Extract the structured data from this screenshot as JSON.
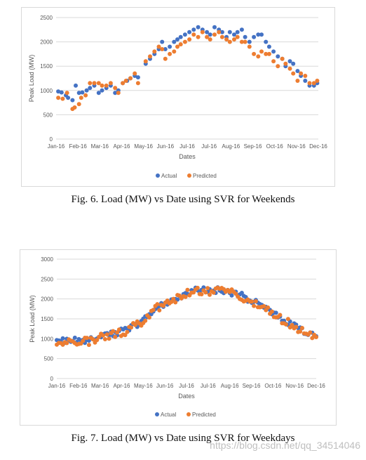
{
  "colors": {
    "actual": "#4472C4",
    "predicted": "#ED7D31",
    "grid": "#d9d9d9",
    "axis_text": "#595959"
  },
  "figures": [
    {
      "caption": "Fig. 6. Load (MW) vs Date using SVR for Weekends",
      "chart_data": {
        "type": "scatter",
        "title": "",
        "xlabel": "Dates",
        "ylabel": "Peak Load (MW)",
        "ylim": [
          0,
          2500
        ],
        "yticks": [
          0,
          500,
          1000,
          1500,
          2000,
          2500
        ],
        "xtick_labels": [
          "Jan-16",
          "Feb-16",
          "Mar-16",
          "Apr-16",
          "May-16",
          "Jun-16",
          "Jul-16",
          "Jul-16",
          "Aug-16",
          "Sep-16",
          "Oct-16",
          "Nov-16",
          "Dec-16"
        ],
        "grid": true,
        "legend": "bottom",
        "series": [
          {
            "name": "Actual",
            "x": [
              0.1,
              0.25,
              0.45,
              0.55,
              0.75,
              0.9,
              1.05,
              1.2,
              1.4,
              1.55,
              1.75,
              1.95,
              2.1,
              2.3,
              2.5,
              2.7,
              2.85,
              3.05,
              3.25,
              3.4,
              3.6,
              3.75,
              4.1,
              4.3,
              4.5,
              4.7,
              4.85,
              5.0,
              5.2,
              5.4,
              5.55,
              5.7,
              5.9,
              6.1,
              6.3,
              6.5,
              6.7,
              6.9,
              7.05,
              7.25,
              7.45,
              7.6,
              7.8,
              7.95,
              8.15,
              8.3,
              8.5,
              8.65,
              8.85,
              9.05,
              9.25,
              9.4,
              9.6,
              9.75,
              9.95,
              10.15,
              10.35,
              10.5,
              10.7,
              10.85,
              11.05,
              11.2,
              11.4,
              11.6,
              11.8,
              11.95
            ],
            "y": [
              980,
              960,
              900,
              850,
              800,
              1100,
              950,
              960,
              1000,
              1050,
              1100,
              950,
              1000,
              1050,
              1100,
              950,
              1000,
              1150,
              1200,
              1250,
              1300,
              1270,
              1550,
              1650,
              1750,
              1850,
              2000,
              1850,
              1900,
              2000,
              2050,
              2100,
              2150,
              2200,
              2250,
              2300,
              2250,
              2200,
              2150,
              2300,
              2250,
              2200,
              2100,
              2200,
              2150,
              2200,
              2250,
              2100,
              2000,
              2100,
              2150,
              2150,
              2000,
              1900,
              1800,
              1700,
              1650,
              1500,
              1600,
              1550,
              1400,
              1300,
              1200,
              1100,
              1100,
              1150
            ]
          },
          {
            "name": "Predicted",
            "x": [
              0.1,
              0.3,
              0.5,
              0.75,
              0.85,
              1.05,
              1.15,
              1.35,
              1.55,
              1.75,
              1.95,
              2.1,
              2.3,
              2.5,
              2.7,
              2.85,
              3.05,
              3.2,
              3.4,
              3.6,
              3.75,
              4.1,
              4.3,
              4.5,
              4.7,
              4.85,
              5.0,
              5.2,
              5.4,
              5.55,
              5.7,
              5.9,
              6.1,
              6.3,
              6.5,
              6.7,
              6.9,
              7.05,
              7.25,
              7.45,
              7.6,
              7.8,
              7.95,
              8.15,
              8.3,
              8.5,
              8.65,
              8.85,
              9.05,
              9.25,
              9.4,
              9.6,
              9.75,
              9.95,
              10.15,
              10.35,
              10.5,
              10.7,
              10.85,
              11.05,
              11.2,
              11.4,
              11.6,
              11.8,
              11.95
            ],
            "y": [
              850,
              830,
              950,
              620,
              650,
              720,
              850,
              900,
              1150,
              1150,
              1150,
              1100,
              1100,
              1150,
              1050,
              950,
              1150,
              1200,
              1250,
              1350,
              1150,
              1600,
              1700,
              1800,
              1900,
              1850,
              1650,
              1750,
              1800,
              1900,
              1950,
              2000,
              2050,
              2150,
              2100,
              2200,
              2100,
              2050,
              2150,
              2200,
              2100,
              2050,
              2000,
              2050,
              2100,
              2000,
              2000,
              1900,
              1750,
              1700,
              1800,
              1750,
              1750,
              1600,
              1500,
              1650,
              1550,
              1450,
              1350,
              1200,
              1350,
              1300,
              1150,
              1150,
              1200
            ]
          }
        ]
      }
    },
    {
      "caption": "Fig. 7. Load (MW) vs Date using SVR for Weekdays",
      "chart_data": {
        "type": "scatter",
        "title": "",
        "xlabel": "Dates",
        "ylabel": "Peak Load (MW)",
        "ylim": [
          0,
          3000
        ],
        "yticks": [
          0,
          500,
          1000,
          1500,
          2000,
          2500,
          3000
        ],
        "xtick_labels": [
          "Jan-16",
          "Feb-16",
          "Mar-16",
          "Apr-16",
          "May-16",
          "Jun-16",
          "Jul-16",
          "Jul-16",
          "Aug-16",
          "Sep-16",
          "Oct-16",
          "Nov-16",
          "Dec-16"
        ],
        "grid": true,
        "legend": "bottom",
        "anchors": [
          [
            0,
            980
          ],
          [
            0.5,
            970
          ],
          [
            1,
            940
          ],
          [
            1.5,
            950
          ],
          [
            2,
            1080
          ],
          [
            2.5,
            1120
          ],
          [
            3,
            1180
          ],
          [
            3.5,
            1300
          ],
          [
            4,
            1450
          ],
          [
            4.5,
            1750
          ],
          [
            5,
            1900
          ],
          [
            5.5,
            2000
          ],
          [
            6,
            2150
          ],
          [
            6.5,
            2230
          ],
          [
            7,
            2200
          ],
          [
            7.5,
            2220
          ],
          [
            8,
            2180
          ],
          [
            8.5,
            2100
          ],
          [
            9,
            1950
          ],
          [
            9.5,
            1820
          ],
          [
            10,
            1650
          ],
          [
            10.5,
            1480
          ],
          [
            11,
            1330
          ],
          [
            11.5,
            1150
          ],
          [
            12,
            1100
          ]
        ],
        "series": [
          {
            "name": "Actual"
          },
          {
            "name": "Predicted"
          }
        ]
      }
    }
  ],
  "watermark": "https://blog.csdn.net/qq_34514046"
}
